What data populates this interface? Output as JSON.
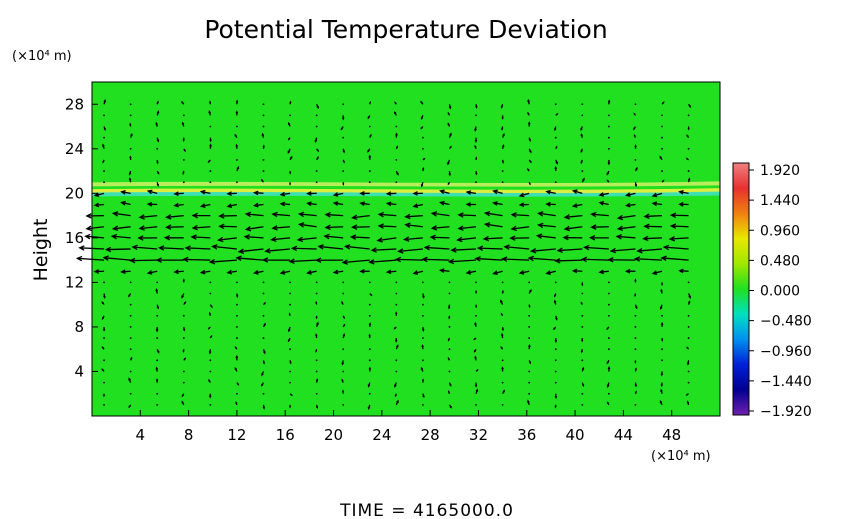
{
  "chart_data": {
    "type": "heatmap",
    "title": "Potential Temperature Deviation",
    "ylabel": "Height",
    "x_unit": "(×10⁴ m)",
    "y_unit": "(×10⁴ m)",
    "x_ticks": [
      "4",
      "8",
      "12",
      "16",
      "20",
      "24",
      "28",
      "32",
      "36",
      "40",
      "44",
      "48"
    ],
    "y_ticks": [
      "4",
      "8",
      "12",
      "16",
      "20",
      "24",
      "28"
    ],
    "xlim": [
      0,
      52
    ],
    "ylim": [
      0,
      30
    ],
    "colorbar": {
      "ticks": [
        "1.920",
        "1.440",
        "0.960",
        "0.480",
        "0.000",
        "−0.480",
        "−0.960",
        "−1.440",
        "−1.920"
      ],
      "range": [
        -1.92,
        1.92
      ],
      "colors": [
        "#f08080",
        "#e83030",
        "#f08010",
        "#e8e800",
        "#a0e800",
        "#20e020",
        "#00e0c0",
        "#0090f0",
        "#0020d8",
        "#000090",
        "#7020b0"
      ]
    },
    "field": {
      "background_value": 0.1,
      "bands": [
        {
          "y": 20.8,
          "value": 0.5,
          "color": "#c8f060"
        },
        {
          "y": 20.2,
          "value": 0.9,
          "color": "#f0f040"
        },
        {
          "y": 19.9,
          "value": -0.5,
          "color": "#40e0c0"
        }
      ]
    },
    "vectors": {
      "description_levels": "wind vectors: strong westward flow between heights 12 and 20, weak elsewhere",
      "jets": [
        {
          "y": 14.2,
          "strength": 1.0
        },
        {
          "y": 15.5,
          "strength": 0.8
        },
        {
          "y": 17.5,
          "strength": 0.7
        }
      ]
    },
    "footer": "TIME  =  4165000.0"
  },
  "colors": {
    "field_base": "#20e020",
    "arrow": "#000000"
  }
}
